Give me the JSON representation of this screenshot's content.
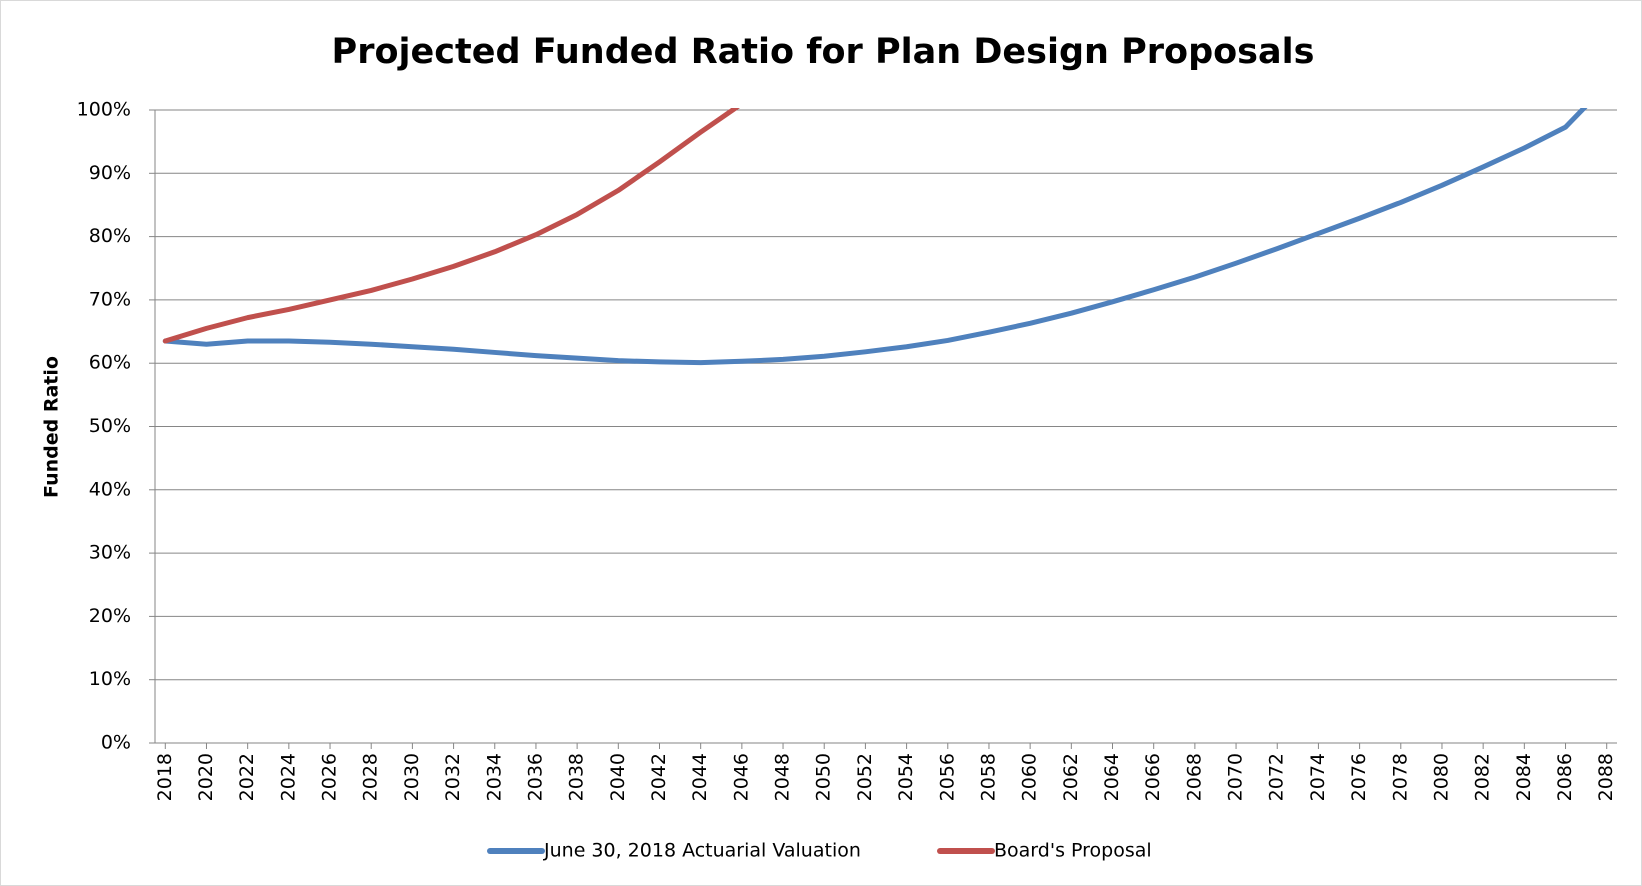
{
  "chart_data": {
    "type": "line",
    "title": "Projected Funded Ratio for Plan Design Proposals",
    "y_label": "Funded Ratio",
    "x": [
      2018,
      2020,
      2022,
      2024,
      2026,
      2028,
      2030,
      2032,
      2034,
      2036,
      2038,
      2040,
      2042,
      2044,
      2046,
      2048,
      2050,
      2052,
      2054,
      2056,
      2058,
      2060,
      2062,
      2064,
      2066,
      2068,
      2070,
      2072,
      2074,
      2076,
      2078,
      2080,
      2082,
      2084,
      2086,
      2088
    ],
    "series": [
      {
        "name": "June 30, 2018 Actuarial Valuation",
        "color": "#4f81bd",
        "values": [
          63.5,
          63,
          63.5,
          63.5,
          63.3,
          63,
          62.6,
          62.2,
          61.7,
          61.2,
          60.8,
          60.4,
          60.2,
          60.1,
          60.3,
          60.6,
          61.1,
          61.8,
          62.6,
          63.6,
          64.9,
          66.3,
          67.9,
          69.7,
          71.6,
          73.6,
          75.8,
          78.1,
          80.5,
          82.9,
          85.4,
          88.1,
          91,
          94,
          97.3,
          104
        ]
      },
      {
        "name": "Board's Proposal",
        "color": "#c0504d",
        "values": [
          63.5,
          65.5,
          67.2,
          68.5,
          70,
          71.5,
          73.3,
          75.3,
          77.6,
          80.3,
          83.5,
          87.3,
          91.8,
          96.5,
          101,
          null,
          null,
          null,
          null,
          null,
          null,
          null,
          null,
          null,
          null,
          null,
          null,
          null,
          null,
          null,
          null,
          null,
          null,
          null,
          null,
          null
        ]
      }
    ],
    "xlim": [
      2017.5,
      2088.5
    ],
    "xticks": [
      2018,
      2020,
      2022,
      2024,
      2026,
      2028,
      2030,
      2032,
      2034,
      2036,
      2038,
      2040,
      2042,
      2044,
      2046,
      2048,
      2050,
      2052,
      2054,
      2056,
      2058,
      2060,
      2062,
      2064,
      2066,
      2068,
      2070,
      2072,
      2074,
      2076,
      2078,
      2080,
      2082,
      2084,
      2086,
      2088
    ],
    "ylim": [
      0,
      100
    ],
    "yticks": [
      {
        "value": 0,
        "label": "0%"
      },
      {
        "value": 10,
        "label": "10%"
      },
      {
        "value": 20,
        "label": "20%"
      },
      {
        "value": 30,
        "label": "30%"
      },
      {
        "value": 40,
        "label": "40%"
      },
      {
        "value": 50,
        "label": "50%"
      },
      {
        "value": 60,
        "label": "60%"
      },
      {
        "value": 70,
        "label": "70%"
      },
      {
        "value": 80,
        "label": "80%"
      },
      {
        "value": 90,
        "label": "90%"
      },
      {
        "value": 100,
        "label": "100%"
      }
    ],
    "grid": true,
    "legend": "bottom"
  }
}
